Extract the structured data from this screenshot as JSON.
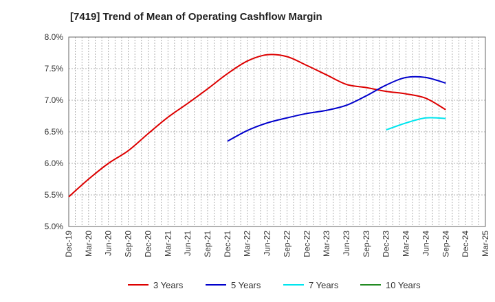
{
  "chart_data": {
    "type": "line",
    "title": "[7419]  Trend of Mean of Operating Cashflow Margin",
    "xlabel": "",
    "ylabel": "",
    "categories": [
      "Dec-19",
      "Mar-20",
      "Jun-20",
      "Sep-20",
      "Dec-20",
      "Mar-21",
      "Jun-21",
      "Sep-21",
      "Dec-21",
      "Mar-22",
      "Jun-22",
      "Sep-22",
      "Dec-22",
      "Mar-23",
      "Jun-23",
      "Sep-23",
      "Dec-23",
      "Mar-24",
      "Jun-24",
      "Sep-24",
      "Dec-24",
      "Mar-25"
    ],
    "yticks": [
      "5.0%",
      "5.5%",
      "6.0%",
      "6.5%",
      "7.0%",
      "7.5%",
      "8.0%"
    ],
    "ylim": [
      5.0,
      8.0
    ],
    "grid": true,
    "legend_position": "bottom",
    "series": [
      {
        "name": "3 Years",
        "color": "#dd0000",
        "values": [
          5.47,
          5.75,
          6.0,
          6.2,
          6.47,
          6.73,
          6.95,
          7.18,
          7.42,
          7.62,
          7.72,
          7.69,
          7.55,
          7.4,
          7.25,
          7.2,
          7.14,
          7.1,
          7.03,
          6.85,
          null,
          null
        ]
      },
      {
        "name": "5 Years",
        "color": "#0000cc",
        "values": [
          null,
          null,
          null,
          null,
          null,
          null,
          null,
          null,
          6.35,
          6.52,
          6.64,
          6.72,
          6.79,
          6.84,
          6.92,
          7.07,
          7.24,
          7.36,
          7.36,
          7.27,
          null,
          null
        ]
      },
      {
        "name": "7 Years",
        "color": "#00e5ee",
        "values": [
          null,
          null,
          null,
          null,
          null,
          null,
          null,
          null,
          null,
          null,
          null,
          null,
          null,
          null,
          null,
          null,
          6.53,
          6.64,
          6.72,
          6.71,
          null,
          null
        ]
      },
      {
        "name": "10 Years",
        "color": "#228b22",
        "values": [
          null,
          null,
          null,
          null,
          null,
          null,
          null,
          null,
          null,
          null,
          null,
          null,
          null,
          null,
          null,
          null,
          null,
          null,
          null,
          null,
          null,
          null
        ]
      }
    ]
  }
}
